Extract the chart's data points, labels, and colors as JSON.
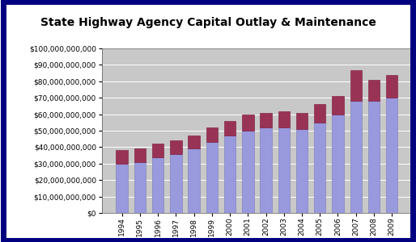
{
  "title": "State Highway Agency Capital Outlay & Maintenance",
  "years": [
    "1994",
    "1995",
    "1996",
    "1997",
    "1998",
    "1999",
    "2000",
    "2001",
    "2002",
    "2003",
    "2004",
    "2005",
    "2006",
    "2007",
    "2008",
    "2009"
  ],
  "blue_values": [
    30000000000,
    31000000000,
    34000000000,
    36000000000,
    39000000000,
    43000000000,
    47000000000,
    50000000000,
    52000000000,
    52000000000,
    51000000000,
    55000000000,
    60000000000,
    68000000000,
    68000000000,
    70000000000
  ],
  "red_values": [
    8000000000,
    8000000000,
    8000000000,
    8000000000,
    8000000000,
    9000000000,
    9000000000,
    10000000000,
    9000000000,
    10000000000,
    10000000000,
    11000000000,
    11000000000,
    19000000000,
    13000000000,
    14000000000
  ],
  "bar_color_blue": "#9999DD",
  "bar_color_red": "#993355",
  "bar_edge_blue": "#7777BB",
  "bar_edge_red": "#771133",
  "ylim": [
    0,
    100000000000
  ],
  "ytick_step": 10000000000,
  "fig_bg_color": "#FFFFFF",
  "plot_area_color": "#C8C8C8",
  "outer_border_color": "#000080",
  "title_fontsize": 10,
  "tick_fontsize": 6.5,
  "bar_width": 0.65
}
